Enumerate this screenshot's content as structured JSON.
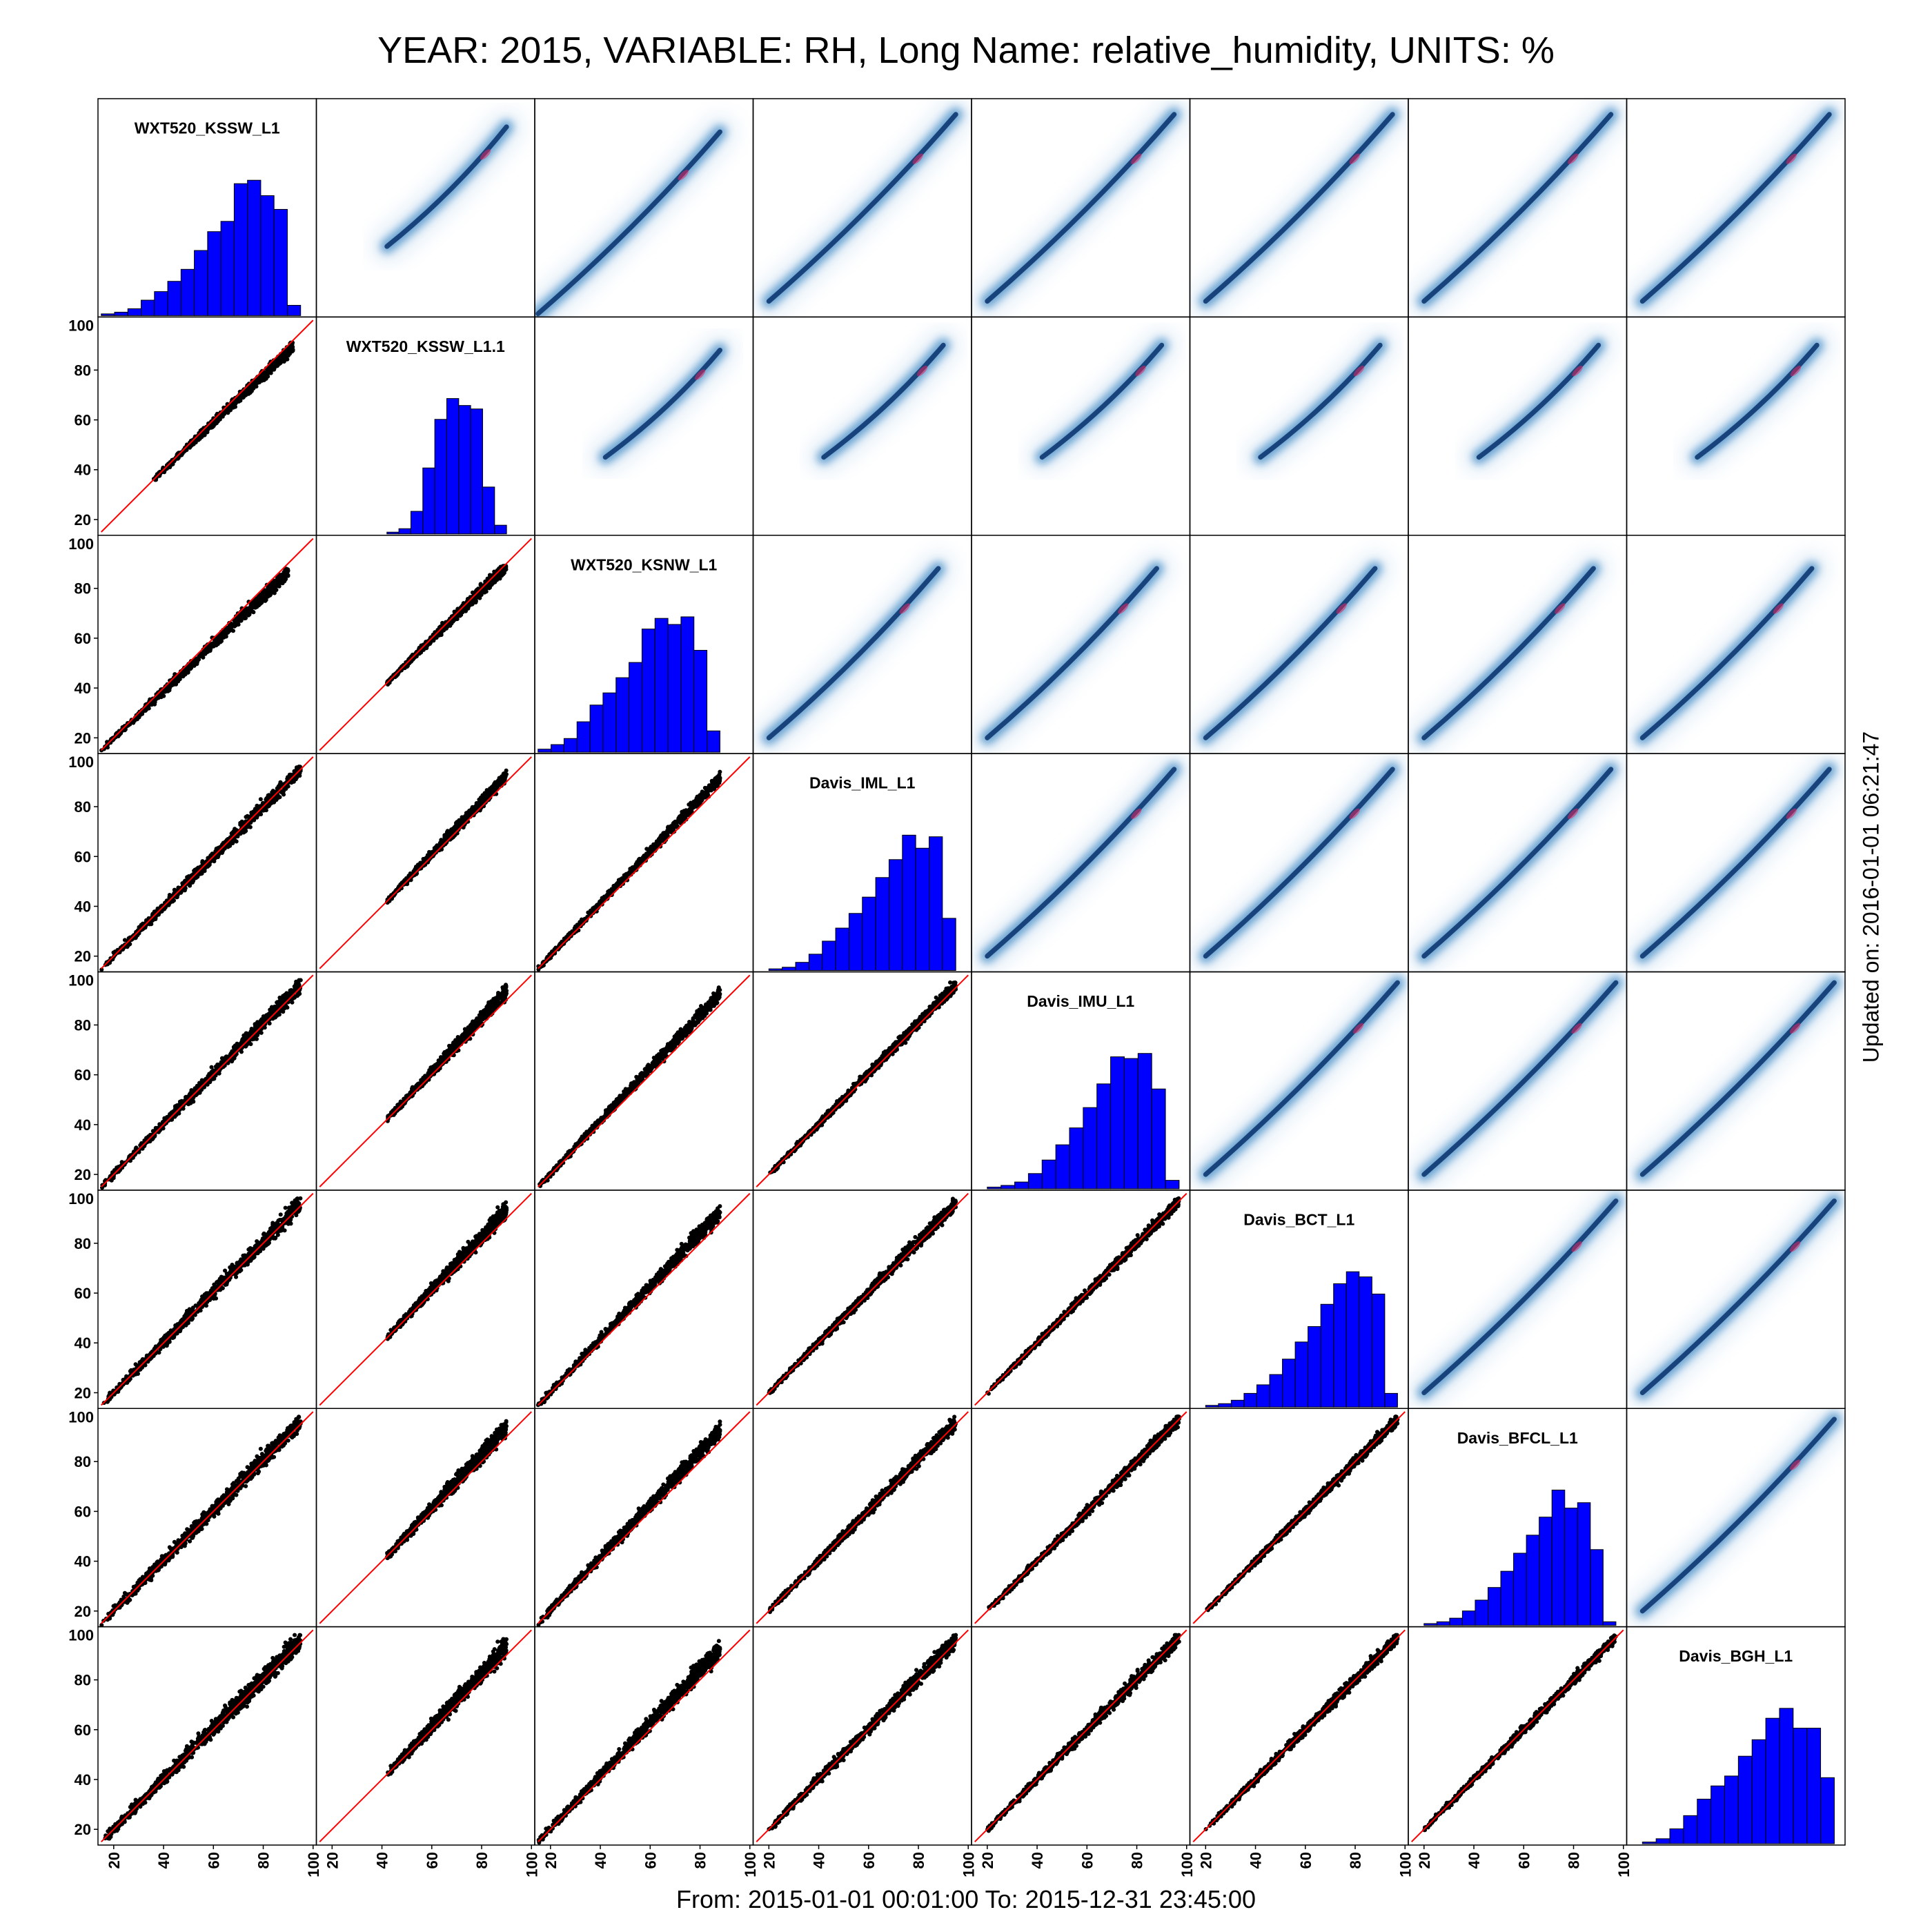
{
  "title": "YEAR: 2015, VARIABLE: RH, Long Name: relative_humidity, UNITS: %",
  "footer": "From: 2015-01-01 00:01:00 To: 2015-12-31 23:45:00",
  "updated": "Updated on: 2016-01-01 06:21:47",
  "chart_data": {
    "type": "scatter",
    "subtype": "scatterplot-matrix",
    "upper_panels": "density",
    "lower_panels": "scatter with 1:1 reference line",
    "diagonal_panels": "histogram",
    "axis_range": [
      15,
      100
    ],
    "tick_values": [
      20,
      40,
      60,
      80,
      100
    ],
    "colors": {
      "histogram_fill": "#0000ff",
      "scatter_points": "#000000",
      "reference_line": "#ff0000",
      "density_low": "#dbe9f6",
      "density_high": "#08306b",
      "density_peak": "#e0245e"
    },
    "variables": [
      {
        "name": "WXT520_KSSW_L1",
        "range": [
          15,
          95
        ],
        "hist": [
          1,
          2,
          4,
          9,
          14,
          20,
          27,
          38,
          49,
          55,
          77,
          79,
          70,
          62,
          6
        ]
      },
      {
        "name": "WXT520_KSSW_L1.1",
        "range": [
          42,
          90
        ],
        "hist": [
          1,
          3,
          13,
          38,
          66,
          78,
          74,
          72,
          27,
          5
        ]
      },
      {
        "name": "WXT520_KSNW_L1",
        "range": [
          15,
          88
        ],
        "hist": [
          2,
          5,
          9,
          20,
          31,
          39,
          49,
          59,
          81,
          88,
          84,
          89,
          67,
          14
        ]
      },
      {
        "name": "Davis_IML_L1",
        "range": [
          20,
          95
        ],
        "hist": [
          1,
          2,
          5,
          10,
          18,
          26,
          35,
          45,
          57,
          68,
          83,
          75,
          82,
          32
        ]
      },
      {
        "name": "Davis_IMU_L1",
        "range": [
          20,
          97
        ],
        "hist": [
          1,
          2,
          4,
          9,
          17,
          26,
          36,
          48,
          62,
          78,
          77,
          80,
          59,
          5
        ]
      },
      {
        "name": "Davis_BCT_L1",
        "range": [
          20,
          97
        ],
        "hist": [
          1,
          2,
          4,
          8,
          13,
          19,
          28,
          38,
          47,
          60,
          72,
          79,
          76,
          66,
          8
        ]
      },
      {
        "name": "Davis_BFCL_L1",
        "range": [
          20,
          97
        ],
        "hist": [
          1,
          2,
          4,
          8,
          14,
          21,
          30,
          40,
          50,
          60,
          75,
          65,
          68,
          42,
          2
        ]
      },
      {
        "name": "Davis_BGH_L1",
        "range": [
          20,
          97
        ],
        "hist": [
          1,
          3,
          9,
          17,
          27,
          35,
          41,
          53,
          63,
          76,
          82,
          70,
          70,
          40
        ]
      }
    ]
  }
}
